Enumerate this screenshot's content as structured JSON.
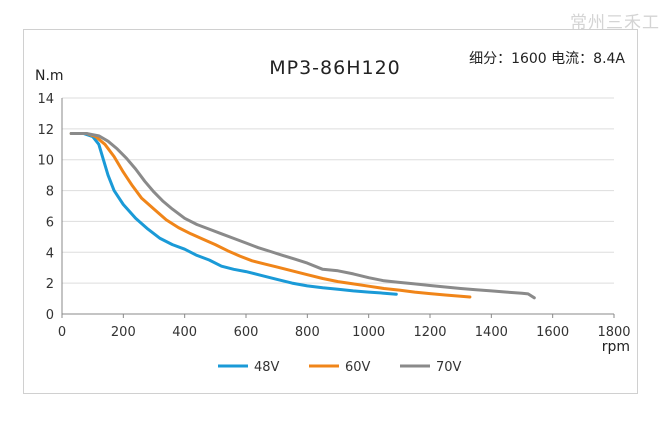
{
  "watermark": "常州三禾工",
  "chart_data": {
    "type": "line",
    "title": "MP3-86H120",
    "info": "细分：1600 电流：8.4A",
    "ylabel": "N.m",
    "xlabel": "rpm",
    "xlim": [
      0,
      1800
    ],
    "ylim": [
      0,
      14
    ],
    "xticks": [
      0,
      200,
      400,
      600,
      800,
      1000,
      1200,
      1400,
      1600,
      1800
    ],
    "yticks": [
      0,
      2,
      4,
      6,
      8,
      10,
      12,
      14
    ],
    "grid": "horizontal",
    "legend_position": "bottom-center",
    "series": [
      {
        "name": "48V",
        "color": "#1a9ad7",
        "points": [
          [
            30,
            11.7
          ],
          [
            70,
            11.7
          ],
          [
            100,
            11.5
          ],
          [
            120,
            11.0
          ],
          [
            135,
            10.0
          ],
          [
            150,
            9.0
          ],
          [
            170,
            8.0
          ],
          [
            200,
            7.1
          ],
          [
            240,
            6.2
          ],
          [
            280,
            5.5
          ],
          [
            320,
            4.9
          ],
          [
            360,
            4.5
          ],
          [
            400,
            4.2
          ],
          [
            440,
            3.8
          ],
          [
            480,
            3.5
          ],
          [
            520,
            3.1
          ],
          [
            560,
            2.9
          ],
          [
            600,
            2.75
          ],
          [
            650,
            2.5
          ],
          [
            700,
            2.25
          ],
          [
            750,
            2.0
          ],
          [
            800,
            1.82
          ],
          [
            850,
            1.7
          ],
          [
            900,
            1.6
          ],
          [
            950,
            1.5
          ],
          [
            1000,
            1.42
          ],
          [
            1050,
            1.35
          ],
          [
            1090,
            1.28
          ]
        ]
      },
      {
        "name": "60V",
        "color": "#f08519",
        "points": [
          [
            30,
            11.7
          ],
          [
            80,
            11.7
          ],
          [
            110,
            11.5
          ],
          [
            140,
            11.0
          ],
          [
            170,
            10.2
          ],
          [
            200,
            9.2
          ],
          [
            230,
            8.3
          ],
          [
            260,
            7.5
          ],
          [
            300,
            6.8
          ],
          [
            340,
            6.1
          ],
          [
            380,
            5.6
          ],
          [
            420,
            5.2
          ],
          [
            460,
            4.85
          ],
          [
            500,
            4.5
          ],
          [
            540,
            4.1
          ],
          [
            580,
            3.75
          ],
          [
            620,
            3.45
          ],
          [
            660,
            3.25
          ],
          [
            700,
            3.05
          ],
          [
            750,
            2.8
          ],
          [
            800,
            2.55
          ],
          [
            850,
            2.3
          ],
          [
            900,
            2.1
          ],
          [
            950,
            1.95
          ],
          [
            1000,
            1.8
          ],
          [
            1050,
            1.65
          ],
          [
            1100,
            1.55
          ],
          [
            1150,
            1.42
          ],
          [
            1200,
            1.32
          ],
          [
            1250,
            1.23
          ],
          [
            1300,
            1.15
          ],
          [
            1330,
            1.1
          ]
        ]
      },
      {
        "name": "70V",
        "color": "#8a8a8a",
        "points": [
          [
            30,
            11.7
          ],
          [
            80,
            11.7
          ],
          [
            120,
            11.55
          ],
          [
            150,
            11.2
          ],
          [
            180,
            10.7
          ],
          [
            210,
            10.1
          ],
          [
            240,
            9.4
          ],
          [
            270,
            8.6
          ],
          [
            300,
            7.9
          ],
          [
            330,
            7.3
          ],
          [
            360,
            6.8
          ],
          [
            400,
            6.2
          ],
          [
            440,
            5.8
          ],
          [
            480,
            5.5
          ],
          [
            520,
            5.2
          ],
          [
            560,
            4.9
          ],
          [
            600,
            4.6
          ],
          [
            640,
            4.3
          ],
          [
            680,
            4.05
          ],
          [
            720,
            3.8
          ],
          [
            760,
            3.55
          ],
          [
            800,
            3.3
          ],
          [
            850,
            2.9
          ],
          [
            900,
            2.8
          ],
          [
            950,
            2.6
          ],
          [
            1000,
            2.35
          ],
          [
            1050,
            2.15
          ],
          [
            1100,
            2.05
          ],
          [
            1150,
            1.95
          ],
          [
            1200,
            1.85
          ],
          [
            1250,
            1.75
          ],
          [
            1300,
            1.65
          ],
          [
            1350,
            1.57
          ],
          [
            1400,
            1.5
          ],
          [
            1450,
            1.42
          ],
          [
            1500,
            1.35
          ],
          [
            1520,
            1.3
          ],
          [
            1540,
            1.05
          ]
        ]
      }
    ]
  }
}
